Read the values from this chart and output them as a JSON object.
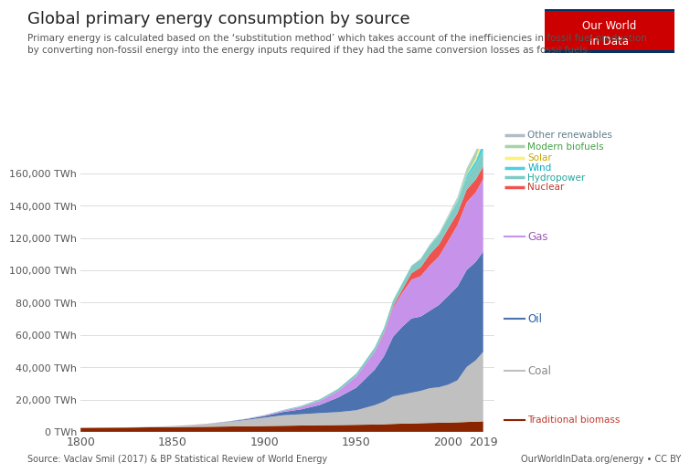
{
  "title": "Global primary energy consumption by source",
  "subtitle_line1": "Primary energy is calculated based on the ‘substitution method’ which takes account of the inefficiencies in fossil fuel production",
  "subtitle_line2": "by converting non-fossil energy into the energy inputs required if they had the same conversion losses as fossil fuels.",
  "source": "Source: Vaclav Smil (2017) & BP Statistical Review of World Energy",
  "source_right": "OurWorldInData.org/energy • CC BY",
  "logo_line1": "Our World",
  "logo_line2": "in Data",
  "years": [
    1800,
    1810,
    1820,
    1830,
    1840,
    1850,
    1860,
    1870,
    1880,
    1890,
    1900,
    1910,
    1920,
    1930,
    1940,
    1950,
    1960,
    1965,
    1970,
    1975,
    1980,
    1985,
    1990,
    1995,
    2000,
    2005,
    2010,
    2015,
    2019
  ],
  "series_order": [
    "Traditional biomass",
    "Coal",
    "Oil",
    "Gas",
    "Nuclear",
    "Hydropower",
    "Wind",
    "Solar",
    "Modern biofuels",
    "Other renewables"
  ],
  "series": {
    "Traditional biomass": {
      "color": "#8B2500",
      "label_color": "#c0392b",
      "values": [
        2418,
        2510,
        2600,
        2700,
        2800,
        2900,
        3050,
        3150,
        3300,
        3450,
        3600,
        3750,
        3900,
        4100,
        4200,
        4350,
        4500,
        4700,
        4900,
        5050,
        5200,
        5350,
        5500,
        5600,
        5700,
        5900,
        6100,
        6300,
        6500
      ]
    },
    "Coal": {
      "color": "#c0c0c0",
      "label_color": "#888888",
      "values": [
        0,
        50,
        100,
        200,
        400,
        700,
        1200,
        1900,
        2800,
        3900,
        5200,
        6500,
        7000,
        7500,
        8000,
        9000,
        12000,
        14000,
        17000,
        18000,
        19000,
        20000,
        21500,
        22000,
        23500,
        26000,
        34000,
        38000,
        43000
      ]
    },
    "Oil": {
      "color": "#4C72B0",
      "label_color": "#2c5fa8",
      "values": [
        0,
        0,
        0,
        0,
        0,
        0,
        10,
        50,
        200,
        500,
        1000,
        2000,
        3000,
        5000,
        9000,
        14000,
        22000,
        28000,
        37000,
        42000,
        46000,
        46000,
        48000,
        51000,
        55000,
        58000,
        60000,
        61000,
        62000
      ]
    },
    "Gas": {
      "color": "#C792EA",
      "label_color": "#9b59b6",
      "values": [
        0,
        0,
        0,
        0,
        0,
        0,
        0,
        50,
        100,
        200,
        400,
        800,
        1500,
        2500,
        4000,
        7000,
        11000,
        14000,
        18000,
        21000,
        24000,
        25000,
        28000,
        30000,
        34000,
        38000,
        42000,
        43000,
        45000
      ]
    },
    "Nuclear": {
      "color": "#EF5350",
      "label_color": "#c0392b",
      "values": [
        0,
        0,
        0,
        0,
        0,
        0,
        0,
        0,
        0,
        0,
        0,
        0,
        0,
        0,
        0,
        0,
        200,
        500,
        1000,
        2000,
        4000,
        5500,
        7000,
        7500,
        7800,
        7500,
        7800,
        8000,
        7800
      ]
    },
    "Hydropower": {
      "color": "#80cbc4",
      "label_color": "#26a69a",
      "values": [
        0,
        0,
        0,
        0,
        0,
        0,
        0,
        0,
        50,
        100,
        200,
        400,
        700,
        1000,
        1400,
        1800,
        2500,
        3000,
        3500,
        4000,
        4500,
        5000,
        5500,
        6000,
        6500,
        7000,
        7800,
        8500,
        9500
      ]
    },
    "Wind": {
      "color": "#4dd0e1",
      "label_color": "#00acc1",
      "values": [
        0,
        0,
        0,
        0,
        0,
        0,
        0,
        0,
        0,
        0,
        0,
        0,
        0,
        0,
        0,
        0,
        0,
        0,
        0,
        0,
        0,
        0,
        50,
        150,
        300,
        700,
        1400,
        3000,
        5500
      ]
    },
    "Solar": {
      "color": "#fff176",
      "label_color": "#c8a800",
      "values": [
        0,
        0,
        0,
        0,
        0,
        0,
        0,
        0,
        0,
        0,
        0,
        0,
        0,
        0,
        0,
        0,
        0,
        0,
        0,
        0,
        0,
        0,
        0,
        10,
        30,
        100,
        300,
        1500,
        5000
      ]
    },
    "Modern biofuels": {
      "color": "#a5d6a7",
      "label_color": "#43a047",
      "values": [
        0,
        0,
        0,
        0,
        0,
        0,
        0,
        0,
        0,
        0,
        0,
        0,
        0,
        0,
        0,
        0,
        0,
        0,
        0,
        0,
        0,
        100,
        200,
        400,
        700,
        1200,
        2500,
        3500,
        4000
      ]
    },
    "Other renewables": {
      "color": "#b0bec5",
      "label_color": "#607d8b",
      "values": [
        0,
        0,
        0,
        0,
        0,
        0,
        0,
        0,
        0,
        0,
        0,
        0,
        0,
        0,
        0,
        0,
        0,
        0,
        50,
        100,
        200,
        300,
        400,
        500,
        600,
        800,
        1000,
        1200,
        1500
      ]
    }
  },
  "ylim": [
    0,
    175000
  ],
  "yticks": [
    0,
    20000,
    40000,
    60000,
    80000,
    100000,
    120000,
    140000,
    160000
  ],
  "ytick_labels": [
    "0 TWh",
    "20,000 TWh",
    "40,000 TWh",
    "60,000 TWh",
    "80,000 TWh",
    "100,000 TWh",
    "120,000 TWh",
    "140,000 TWh",
    "160,000 TWh"
  ],
  "xlim": [
    1800,
    2025
  ],
  "xticks": [
    1800,
    1850,
    1900,
    1950,
    2000,
    2019
  ],
  "bg_color": "#ffffff",
  "grid_color": "#dddddd",
  "legend_top": [
    "Other renewables",
    "Modern biofuels",
    "Solar",
    "Wind",
    "Hydropower",
    "Nuclear"
  ],
  "legend_mid": [
    [
      "Gas",
      0.6
    ]
  ],
  "legend_bot": [
    [
      "Oil",
      0.37
    ],
    [
      "Coal",
      0.19
    ],
    [
      "Traditional biomass",
      0.04
    ]
  ]
}
